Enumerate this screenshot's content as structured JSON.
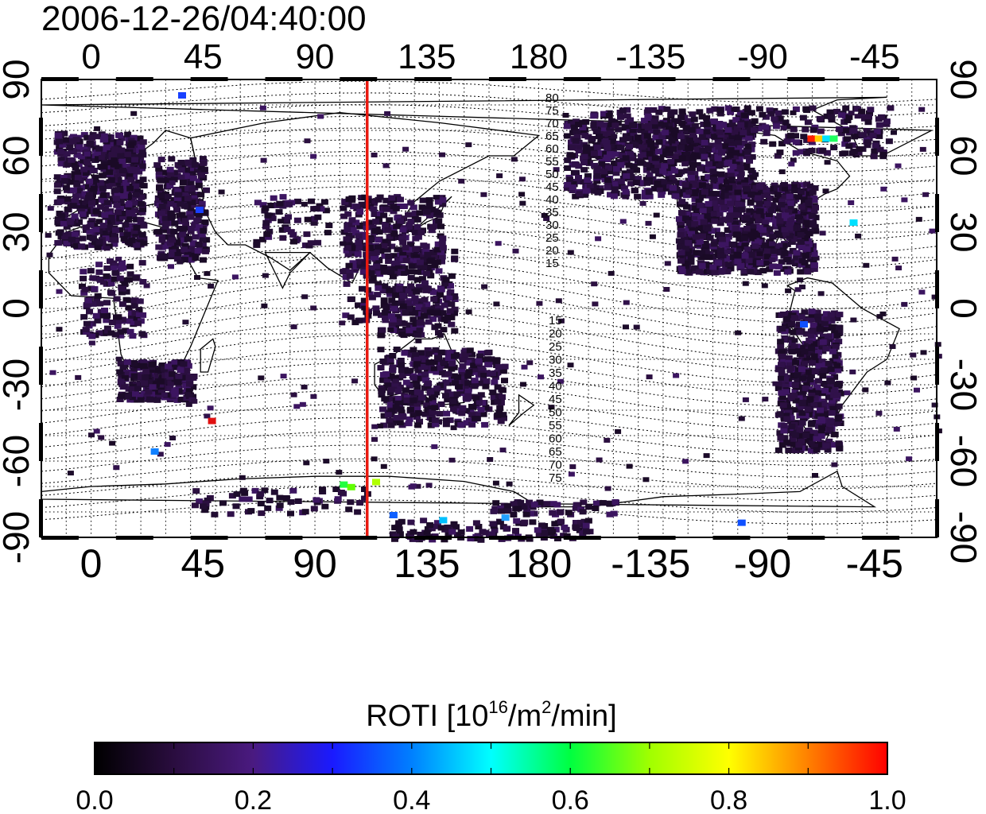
{
  "timestamp": "2006-12-26/04:40:00",
  "map": {
    "lon_ticks_top": [
      "0",
      "45",
      "90",
      "135",
      "180",
      "-135",
      "-90",
      "-45"
    ],
    "lon_ticks_bottom": [
      "0",
      "45",
      "90",
      "135",
      "180",
      "-135",
      "-90",
      "-45"
    ],
    "lat_ticks_left": [
      "90",
      "60",
      "30",
      "0",
      "-30",
      "-60",
      "-90"
    ],
    "lat_ticks_right": [
      "90",
      "60",
      "30",
      "0",
      "-30",
      "-60",
      "-90"
    ],
    "contour_labels_north": [
      "80",
      "75",
      "70",
      "65",
      "60",
      "55",
      "50",
      "45",
      "40",
      "35",
      "30",
      "25",
      "20",
      "15"
    ],
    "contour_labels_south": [
      "15",
      "20",
      "25",
      "30",
      "35",
      "40",
      "45",
      "50",
      "55",
      "60",
      "65",
      "70",
      "75"
    ],
    "terminator_longitude": 111,
    "terminator_color": "#e8190f"
  },
  "colorbar": {
    "title_prefix": "ROTI  [10",
    "title_exp1": "16",
    "title_mid": "/m",
    "title_exp2": "2",
    "title_suffix": "/min]",
    "ticks": [
      "0.0",
      "0.2",
      "0.4",
      "0.6",
      "0.8",
      "1.0"
    ],
    "colors": [
      "#000000",
      "#2a0d3f",
      "#4a1a80",
      "#1a1aff",
      "#0080ff",
      "#00ffff",
      "#00ff40",
      "#a0ff00",
      "#ffff00",
      "#ff8000",
      "#ff0000"
    ]
  },
  "chart_data": {
    "type": "heatmap",
    "title": "2006-12-26/04:40:00",
    "xlabel": "",
    "ylabel": "",
    "xlim_description": "longitude -20 to 340 (labels 0..180, -135..-45)",
    "ylim": [
      -90,
      90
    ],
    "colorbar_label": "ROTI [10^16/m^2/min]",
    "colorbar_range": [
      0.0,
      1.0
    ],
    "grid": true,
    "notable_high_values": [
      {
        "lon": -72,
        "lat": 68,
        "roti": 1.0
      },
      {
        "lon": -65,
        "lat": 68,
        "roti": 0.7
      },
      {
        "lon": 47,
        "lat": -43,
        "roti": 1.0
      },
      {
        "lon": 103,
        "lat": -68,
        "roti": 0.6
      },
      {
        "lon": 113,
        "lat": -67,
        "roti": 0.65
      }
    ]
  }
}
